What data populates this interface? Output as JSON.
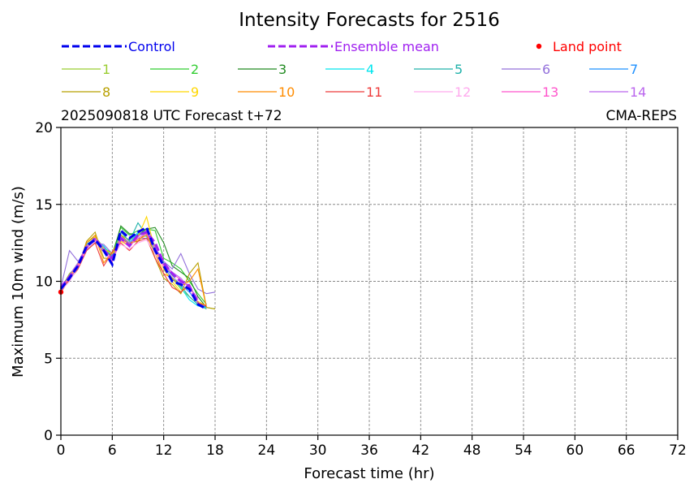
{
  "chart_data": {
    "type": "line",
    "title": "Intensity Forecasts for 2516",
    "subtitle_left": "2025090818 UTC Forecast t+72",
    "subtitle_right": "CMA-REPS",
    "xlabel": "Forecast time (hr)",
    "ylabel": "Maximum 10m wind (m/s)",
    "xlim": [
      0,
      72
    ],
    "ylim": [
      0,
      20
    ],
    "xticks": [
      0,
      6,
      12,
      18,
      24,
      30,
      36,
      42,
      48,
      54,
      60,
      66,
      72
    ],
    "yticks": [
      0,
      5,
      10,
      15,
      20
    ],
    "grid": true,
    "legend_placement": "top",
    "x": [
      0,
      1,
      2,
      3,
      4,
      5,
      6,
      7,
      8,
      9,
      10,
      11,
      12,
      13,
      14,
      15,
      16,
      17,
      18
    ],
    "control": {
      "name": "Control",
      "color": "#0000ee",
      "values": [
        9.5,
        10.2,
        11.0,
        12.3,
        12.7,
        12.0,
        11.1,
        13.3,
        12.8,
        13.2,
        13.5,
        12.0,
        11.0,
        10.0,
        9.8,
        9.5,
        8.5,
        8.2
      ]
    },
    "ensemble_mean": {
      "name": "Ensemble mean",
      "color": "#a020f0",
      "values": [
        9.6,
        10.3,
        11.0,
        12.2,
        12.8,
        12.0,
        11.5,
        12.8,
        12.3,
        13.0,
        13.2,
        12.5,
        11.2,
        10.5,
        10.0,
        9.7,
        8.6
      ]
    },
    "land_point": {
      "name": "Land point",
      "color": "#ff0000",
      "points": [
        [
          0,
          9.3
        ]
      ]
    },
    "members": [
      {
        "name": "1",
        "color": "#9acd32",
        "values": [
          9.5,
          10.5,
          11.0,
          12.5,
          12.9,
          12.2,
          11.5,
          13.0,
          12.7,
          13.0,
          13.3,
          12.3,
          11.0,
          10.2,
          9.5,
          9.0,
          8.5,
          8.3,
          8.2
        ]
      },
      {
        "name": "2",
        "color": "#32cd32",
        "values": [
          9.4,
          10.2,
          10.9,
          12.0,
          12.5,
          12.2,
          11.8,
          13.5,
          13.0,
          13.3,
          13.4,
          13.3,
          11.5,
          11.2,
          10.8,
          10.0,
          9.2,
          8.5
        ]
      },
      {
        "name": "3",
        "color": "#228b22",
        "values": [
          9.6,
          10.4,
          11.2,
          12.3,
          12.6,
          12.1,
          11.6,
          13.6,
          13.1,
          13.0,
          13.4,
          13.5,
          12.5,
          11.0,
          10.6,
          10.2,
          9.0,
          8.3
        ]
      },
      {
        "name": "4",
        "color": "#00e5ee",
        "values": [
          9.5,
          10.3,
          11.0,
          12.1,
          12.7,
          12.3,
          11.6,
          12.8,
          12.5,
          13.2,
          12.9,
          12.0,
          11.1,
          10.3,
          9.6,
          8.8,
          8.4,
          8.3
        ]
      },
      {
        "name": "5",
        "color": "#20b2aa",
        "values": [
          9.7,
          10.1,
          11.1,
          12.4,
          12.8,
          12.0,
          11.7,
          13.2,
          12.6,
          13.8,
          13.0,
          12.1,
          11.2,
          10.4,
          9.7,
          9.0,
          8.5,
          8.2
        ]
      },
      {
        "name": "6",
        "color": "#9370db",
        "values": [
          9.6,
          12.0,
          11.3,
          12.0,
          12.5,
          12.4,
          11.8,
          12.7,
          12.5,
          12.8,
          12.8,
          12.2,
          11.3,
          10.8,
          11.8,
          10.5,
          9.5,
          9.2,
          9.3
        ]
      },
      {
        "name": "7",
        "color": "#1e90ff",
        "values": [
          9.5,
          10.0,
          11.0,
          12.2,
          12.6,
          12.1,
          11.4,
          12.9,
          12.4,
          13.1,
          13.2,
          12.2,
          11.0,
          10.1,
          9.8,
          9.3,
          8.6,
          8.3
        ]
      },
      {
        "name": "8",
        "color": "#b8a000",
        "values": [
          9.4,
          10.1,
          10.8,
          12.6,
          13.2,
          11.5,
          11.5,
          13.0,
          12.5,
          12.6,
          13.2,
          11.5,
          10.2,
          9.8,
          9.2,
          10.5,
          11.2,
          8.3,
          8.2
        ]
      },
      {
        "name": "9",
        "color": "#ffd700",
        "values": [
          9.6,
          10.3,
          11.1,
          12.2,
          12.9,
          12.1,
          11.8,
          12.6,
          12.3,
          12.9,
          14.2,
          12.0,
          10.8,
          10.0,
          9.3,
          9.7,
          8.7,
          8.4
        ]
      },
      {
        "name": "10",
        "color": "#ff8c00",
        "values": [
          9.5,
          10.2,
          11.0,
          12.5,
          13.0,
          11.2,
          11.9,
          12.8,
          12.4,
          12.7,
          13.0,
          11.8,
          10.5,
          10.2,
          9.7,
          10.0,
          10.8,
          8.3
        ]
      },
      {
        "name": "11",
        "color": "#ee3b3b",
        "values": [
          9.3,
          10.1,
          10.8,
          12.0,
          12.5,
          11.0,
          11.9,
          12.5,
          12.0,
          12.6,
          12.8,
          11.5,
          10.5,
          9.6,
          9.3,
          9.8,
          8.6,
          8.4
        ]
      },
      {
        "name": "12",
        "color": "#ffaaee",
        "values": [
          9.4,
          10.0,
          10.9,
          12.1,
          12.6,
          11.9,
          11.5,
          12.4,
          12.1,
          12.5,
          12.7,
          11.8,
          10.9,
          10.3,
          9.9,
          9.4,
          8.7
        ]
      },
      {
        "name": "13",
        "color": "#ff55cc",
        "values": [
          9.5,
          10.2,
          11.0,
          12.2,
          12.7,
          11.9,
          11.3,
          12.7,
          12.3,
          12.8,
          13.1,
          12.1,
          11.0,
          10.5,
          10.1,
          9.6,
          8.8
        ]
      },
      {
        "name": "14",
        "color": "#bb66ee",
        "values": [
          9.5,
          10.4,
          11.2,
          12.3,
          12.8,
          12.2,
          11.4,
          12.9,
          12.5,
          12.9,
          13.3,
          12.2,
          11.1,
          10.6,
          10.2,
          9.6,
          8.9
        ]
      }
    ]
  }
}
